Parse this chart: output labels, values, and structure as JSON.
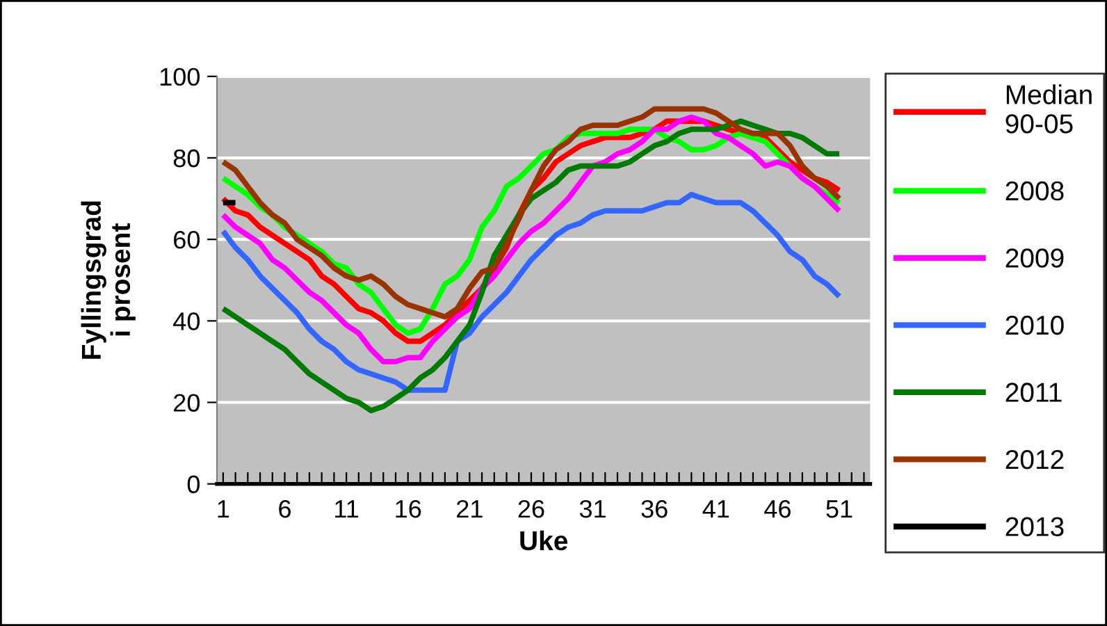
{
  "chart_data": {
    "type": "line",
    "xlabel": "Uke",
    "ylabel": "Fyllingsgrad\ni prosent",
    "x": [
      1,
      2,
      3,
      4,
      5,
      6,
      7,
      8,
      9,
      10,
      11,
      12,
      13,
      14,
      15,
      16,
      17,
      18,
      19,
      20,
      21,
      22,
      23,
      24,
      25,
      26,
      27,
      28,
      29,
      30,
      31,
      32,
      33,
      34,
      35,
      36,
      37,
      38,
      39,
      40,
      41,
      42,
      43,
      44,
      45,
      46,
      47,
      48,
      49,
      50,
      51
    ],
    "xlim": [
      0.5,
      53.5
    ],
    "xticks": [
      1,
      {
        "value": 2,
        "label": null
      },
      {
        "value": 3,
        "label": null
      },
      {
        "value": 4,
        "label": null
      },
      {
        "value": 5,
        "label": null
      },
      6,
      {
        "value": 7,
        "label": null
      },
      {
        "value": 8,
        "label": null
      },
      {
        "value": 9,
        "label": null
      },
      {
        "value": 10,
        "label": null
      },
      11,
      {
        "value": 12,
        "label": null
      },
      {
        "value": 13,
        "label": null
      },
      {
        "value": 14,
        "label": null
      },
      {
        "value": 15,
        "label": null
      },
      16,
      {
        "value": 17,
        "label": null
      },
      {
        "value": 18,
        "label": null
      },
      {
        "value": 19,
        "label": null
      },
      {
        "value": 20,
        "label": null
      },
      21,
      {
        "value": 22,
        "label": null
      },
      {
        "value": 23,
        "label": null
      },
      {
        "value": 24,
        "label": null
      },
      {
        "value": 25,
        "label": null
      },
      26,
      {
        "value": 27,
        "label": null
      },
      {
        "value": 28,
        "label": null
      },
      {
        "value": 29,
        "label": null
      },
      {
        "value": 30,
        "label": null
      },
      31,
      {
        "value": 32,
        "label": null
      },
      {
        "value": 33,
        "label": null
      },
      {
        "value": 34,
        "label": null
      },
      {
        "value": 35,
        "label": null
      },
      36,
      {
        "value": 37,
        "label": null
      },
      {
        "value": 38,
        "label": null
      },
      {
        "value": 39,
        "label": null
      },
      {
        "value": 40,
        "label": null
      },
      41,
      {
        "value": 42,
        "label": null
      },
      {
        "value": 43,
        "label": null
      },
      {
        "value": 44,
        "label": null
      },
      {
        "value": 45,
        "label": null
      },
      46,
      {
        "value": 47,
        "label": null
      },
      {
        "value": 48,
        "label": null
      },
      {
        "value": 49,
        "label": null
      },
      {
        "value": 50,
        "label": null
      },
      51,
      {
        "value": 52,
        "label": null
      },
      {
        "value": 53,
        "label": null
      }
    ],
    "ylim": [
      0,
      100
    ],
    "yticks": [
      0,
      20,
      40,
      60,
      80,
      100
    ],
    "grid": "y",
    "legend": "right",
    "marker": "none",
    "line_style": "solid",
    "series": [
      {
        "name": "Median\n90-05",
        "color": "#ff0000",
        "values": [
          70,
          67,
          66,
          63,
          61,
          59,
          57,
          55,
          51,
          49,
          46,
          43,
          42,
          40,
          37,
          35,
          35,
          37,
          39,
          42,
          45,
          48,
          53,
          58,
          66,
          72,
          75,
          79,
          81,
          83,
          84,
          85,
          85,
          85,
          86,
          87,
          89,
          89,
          89,
          89,
          88,
          87,
          86,
          85,
          85,
          82,
          79,
          77,
          75,
          74,
          72
        ]
      },
      {
        "name": "2008",
        "color": "#00ff00",
        "values": [
          75,
          73,
          71,
          68,
          66,
          63,
          61,
          59,
          57,
          54,
          53,
          49,
          47,
          43,
          39,
          37,
          38,
          43,
          49,
          51,
          55,
          63,
          67,
          73,
          75,
          78,
          81,
          82,
          85,
          86,
          86,
          86,
          86,
          87,
          87,
          87,
          85,
          84,
          82,
          82,
          83,
          85,
          86,
          85,
          84,
          81,
          78,
          75,
          73,
          71,
          69
        ]
      },
      {
        "name": "2009",
        "color": "#ff00ff",
        "values": [
          66,
          63,
          61,
          59,
          55,
          53,
          50,
          47,
          45,
          42,
          39,
          37,
          33,
          30,
          30,
          31,
          31,
          35,
          38,
          41,
          43,
          48,
          51,
          55,
          59,
          62,
          64,
          67,
          70,
          74,
          78,
          79,
          81,
          82,
          84,
          87,
          87,
          89,
          90,
          89,
          86,
          85,
          83,
          81,
          78,
          79,
          78,
          75,
          73,
          70,
          67
        ]
      },
      {
        "name": "2010",
        "color": "#3366ff",
        "values": [
          62,
          58,
          55,
          51,
          48,
          45,
          42,
          38,
          35,
          33,
          30,
          28,
          27,
          26,
          25,
          23,
          23,
          23,
          23,
          35,
          37,
          41,
          44,
          47,
          51,
          55,
          58,
          61,
          63,
          64,
          66,
          67,
          67,
          67,
          67,
          68,
          69,
          69,
          71,
          70,
          69,
          69,
          69,
          67,
          64,
          61,
          57,
          55,
          51,
          49,
          46
        ]
      },
      {
        "name": "2011",
        "color": "#007a00",
        "values": [
          43,
          41,
          39,
          37,
          35,
          33,
          30,
          27,
          25,
          23,
          21,
          20,
          18,
          19,
          21,
          23,
          26,
          28,
          31,
          35,
          39,
          47,
          56,
          61,
          66,
          70,
          72,
          74,
          77,
          78,
          78,
          78,
          78,
          79,
          81,
          83,
          84,
          86,
          87,
          87,
          87,
          88,
          89,
          88,
          87,
          86,
          86,
          85,
          83,
          81,
          81
        ]
      },
      {
        "name": "2012",
        "color": "#993300",
        "values": [
          79,
          77,
          73,
          69,
          66,
          64,
          60,
          58,
          56,
          53,
          51,
          50,
          51,
          49,
          46,
          44,
          43,
          42,
          41,
          43,
          48,
          52,
          53,
          59,
          65,
          72,
          78,
          82,
          84,
          87,
          88,
          88,
          88,
          89,
          90,
          92,
          92,
          92,
          92,
          92,
          91,
          89,
          87,
          86,
          86,
          86,
          83,
          78,
          75,
          73,
          70
        ]
      },
      {
        "name": "2013",
        "color": "#000000",
        "values": [
          69,
          69,
          null,
          null,
          null,
          null,
          null,
          null,
          null,
          null,
          null,
          null,
          null,
          null,
          null,
          null,
          null,
          null,
          null,
          null,
          null,
          null,
          null,
          null,
          null,
          null,
          null,
          null,
          null,
          null,
          null,
          null,
          null,
          null,
          null,
          null,
          null,
          null,
          null,
          null,
          null,
          null,
          null,
          null,
          null,
          null,
          null,
          null,
          null,
          null,
          null
        ]
      }
    ]
  }
}
